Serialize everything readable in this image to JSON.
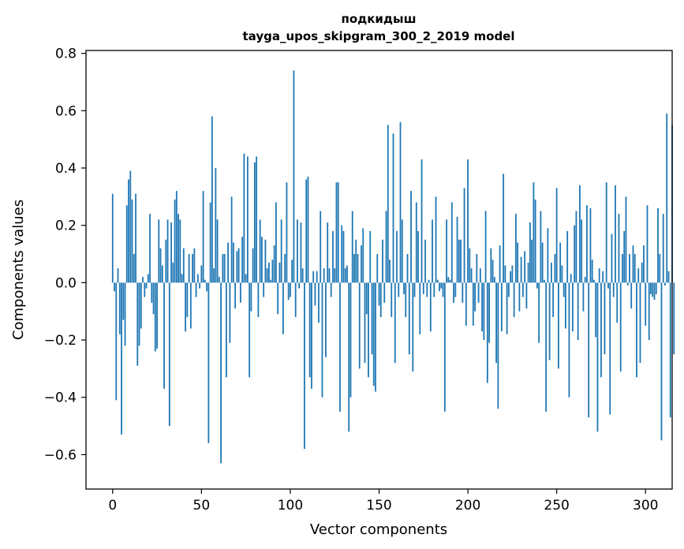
{
  "chart_data": {
    "type": "bar",
    "title": "подкидыш",
    "subtitle": "tayga_upos_skipgram_300_2_2019 model",
    "xlabel": "Vector components",
    "ylabel": "Components values",
    "xlim": [
      -15,
      315
    ],
    "ylim": [
      -0.72,
      0.81
    ],
    "xticks": [
      0,
      50,
      100,
      150,
      200,
      250,
      300
    ],
    "xtick_labels": [
      "0",
      "50",
      "100",
      "150",
      "200",
      "250",
      "300"
    ],
    "yticks": [
      -0.6,
      -0.4,
      -0.2,
      0.0,
      0.2,
      0.4,
      0.6,
      0.8
    ],
    "ytick_labels": [
      "−0.6",
      "−0.4",
      "−0.2",
      "0.0",
      "0.2",
      "0.4",
      "0.6",
      "0.8"
    ],
    "bar_color": "#1f77b4",
    "values": [
      0.31,
      -0.03,
      -0.41,
      0.05,
      -0.18,
      -0.53,
      -0.13,
      -0.22,
      0.27,
      0.36,
      0.39,
      0.29,
      0.1,
      0.31,
      -0.29,
      -0.22,
      -0.16,
      0.02,
      -0.05,
      -0.02,
      0.03,
      0.24,
      -0.07,
      -0.11,
      -0.24,
      -0.23,
      0.22,
      0.12,
      0.06,
      -0.37,
      0.15,
      0.22,
      -0.5,
      0.21,
      0.07,
      0.29,
      0.32,
      0.24,
      0.22,
      0.03,
      0.12,
      -0.17,
      -0.12,
      0.1,
      -0.16,
      0.1,
      0.12,
      -0.05,
      0.03,
      -0.02,
      0.06,
      0.32,
      0.01,
      -0.03,
      -0.56,
      0.28,
      0.58,
      0.05,
      0.4,
      0.22,
      0.02,
      -0.63,
      0.1,
      0.1,
      -0.33,
      0.14,
      -0.21,
      0.3,
      0.14,
      -0.09,
      0.11,
      0.12,
      -0.07,
      0.16,
      0.45,
      0.03,
      0.44,
      -0.33,
      -0.1,
      0.12,
      0.42,
      0.44,
      -0.12,
      0.22,
      0.16,
      -0.05,
      0.15,
      0.05,
      0.07,
      0.01,
      0.08,
      0.13,
      0.28,
      -0.11,
      0.07,
      0.22,
      -0.18,
      0.1,
      0.35,
      -0.06,
      -0.05,
      0.08,
      0.74,
      -0.12,
      0.22,
      -0.02,
      0.21,
      0.05,
      -0.58,
      0.36,
      0.37,
      -0.33,
      -0.37,
      0.04,
      -0.08,
      0.04,
      -0.14,
      0.25,
      -0.4,
      0.05,
      -0.26,
      0.21,
      0.05,
      -0.05,
      0.18,
      0.05,
      0.35,
      0.35,
      -0.45,
      0.2,
      0.18,
      0.05,
      0.06,
      -0.52,
      -0.4,
      0.25,
      0.1,
      0.15,
      0.1,
      -0.3,
      0.13,
      0.19,
      -0.28,
      -0.11,
      -0.33,
      0.18,
      -0.25,
      -0.36,
      -0.38,
      0.1,
      -0.08,
      -0.12,
      0.15,
      -0.07,
      0.25,
      0.55,
      0.08,
      -0.12,
      0.52,
      -0.28,
      0.18,
      -0.05,
      0.56,
      0.22,
      -0.04,
      -0.12,
      0.1,
      -0.25,
      0.32,
      -0.31,
      -0.05,
      0.28,
      0.18,
      -0.18,
      0.43,
      -0.04,
      0.15,
      -0.05,
      0.01,
      -0.17,
      0.22,
      -0.05,
      0.3,
      0.01,
      -0.03,
      -0.02,
      -0.05,
      -0.45,
      0.22,
      0.02,
      0.01,
      0.28,
      -0.07,
      -0.05,
      0.23,
      0.15,
      0.15,
      -0.07,
      0.33,
      -0.15,
      0.43,
      0.12,
      0.05,
      -0.15,
      -0.1,
      0.1,
      -0.07,
      0.05,
      -0.17,
      -0.2,
      0.25,
      -0.35,
      -0.21,
      0.12,
      0.08,
      0.02,
      -0.28,
      -0.44,
      0.13,
      -0.17,
      0.38,
      0.06,
      -0.18,
      -0.05,
      0.04,
      0.06,
      -0.12,
      0.24,
      0.14,
      -0.1,
      0.09,
      -0.05,
      0.11,
      -0.09,
      0.07,
      0.21,
      0.15,
      0.35,
      0.29,
      -0.02,
      -0.21,
      0.25,
      0.14,
      0.01,
      -0.45,
      0.19,
      -0.27,
      0.07,
      -0.12,
      0.1,
      0.33,
      -0.3,
      0.14,
      0.06,
      -0.05,
      -0.16,
      0.18,
      -0.4,
      0.03,
      -0.17,
      0.2,
      0.25,
      -0.2,
      0.34,
      0.22,
      -0.1,
      0.02,
      0.27,
      -0.47,
      0.26,
      0.08,
      0.01,
      -0.19,
      -0.52,
      0.05,
      -0.33,
      0.04,
      -0.25,
      0.35,
      -0.02,
      -0.46,
      0.17,
      -0.05,
      0.34,
      -0.14,
      0.24,
      -0.31,
      0.1,
      0.18,
      0.3,
      -0.01,
      0.1,
      -0.09,
      0.13,
      0.1,
      -0.33,
      0.05,
      -0.28,
      0.07,
      0.13,
      -0.15,
      0.27,
      -0.2,
      -0.04,
      -0.05,
      -0.06,
      -0.04,
      0.26,
      0.1,
      -0.55,
      0.24,
      -0.01,
      0.59,
      0.04,
      -0.47,
      0.55,
      -0.25
    ]
  }
}
